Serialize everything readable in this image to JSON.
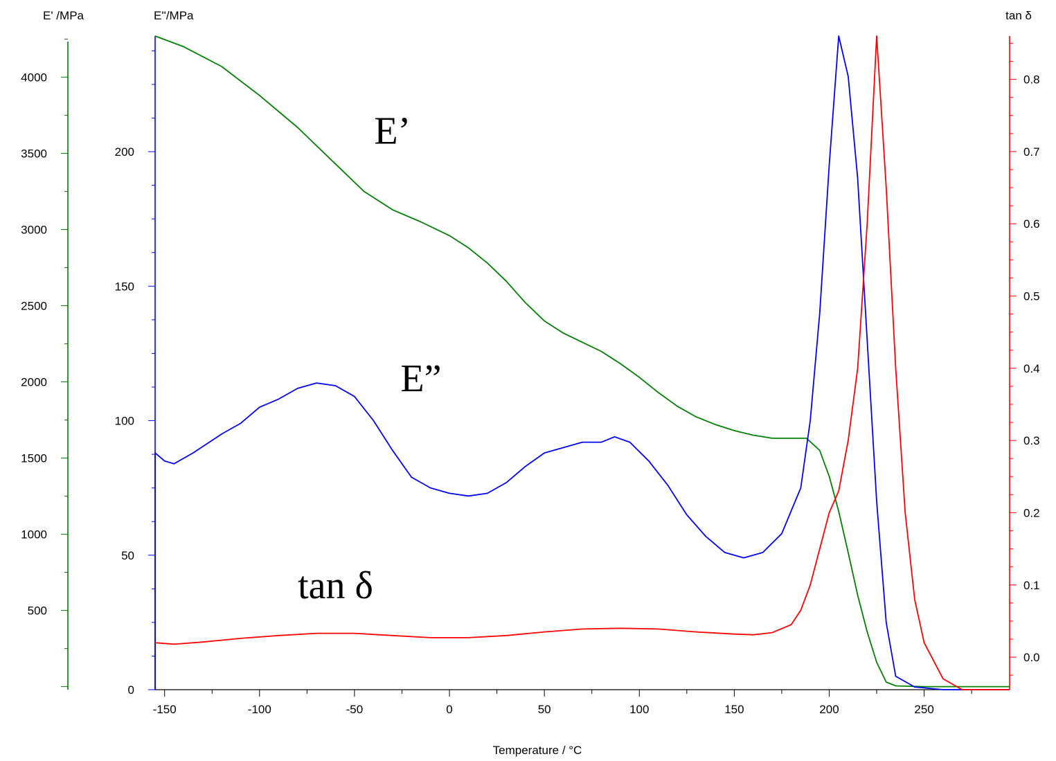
{
  "chart_data": {
    "type": "line",
    "x_axis": {
      "title": "Temperature / °C",
      "range": [
        -155,
        295
      ],
      "ticks": [
        -150,
        -100,
        -50,
        0,
        50,
        100,
        150,
        200,
        250
      ]
    },
    "y_axes": [
      {
        "id": "e1",
        "title": "E' /MPa",
        "color": "#008000",
        "range": [
          -20,
          4270
        ],
        "ticks": [
          0,
          500,
          1000,
          1500,
          2000,
          2500,
          3000,
          3500,
          4000
        ],
        "tick_labels": [
          "",
          "500",
          "1000",
          "1500",
          "2000",
          "2500",
          "3000",
          "3500",
          "4000"
        ]
      },
      {
        "id": "e2",
        "title": "E''/MPa",
        "color": "#0000ff",
        "range": [
          0,
          243
        ],
        "ticks": [
          0,
          50,
          100,
          150,
          200
        ],
        "tick_labels": [
          "0",
          "50",
          "100",
          "150",
          "200"
        ]
      },
      {
        "id": "tan",
        "title": "tan δ",
        "color": "#ff0000",
        "range": [
          -0.045,
          0.86
        ],
        "ticks": [
          0.0,
          0.1,
          0.2,
          0.3,
          0.4,
          0.5,
          0.6,
          0.7,
          0.8
        ],
        "tick_labels": [
          "0.0",
          "0.1",
          "0.2",
          "0.3",
          "0.4",
          "0.5",
          "0.6",
          "0.7",
          "0.8"
        ]
      }
    ],
    "series": [
      {
        "name": "E'",
        "axis": "e1",
        "color": "#008000",
        "points": [
          [
            -155,
            4270
          ],
          [
            -140,
            4200
          ],
          [
            -120,
            4070
          ],
          [
            -100,
            3880
          ],
          [
            -80,
            3670
          ],
          [
            -60,
            3430
          ],
          [
            -45,
            3250
          ],
          [
            -30,
            3130
          ],
          [
            -15,
            3050
          ],
          [
            0,
            2960
          ],
          [
            10,
            2880
          ],
          [
            20,
            2780
          ],
          [
            30,
            2660
          ],
          [
            40,
            2520
          ],
          [
            50,
            2400
          ],
          [
            60,
            2320
          ],
          [
            70,
            2260
          ],
          [
            80,
            2200
          ],
          [
            90,
            2120
          ],
          [
            100,
            2030
          ],
          [
            110,
            1930
          ],
          [
            120,
            1840
          ],
          [
            130,
            1770
          ],
          [
            140,
            1720
          ],
          [
            150,
            1680
          ],
          [
            160,
            1650
          ],
          [
            170,
            1630
          ],
          [
            180,
            1630
          ],
          [
            188,
            1630
          ],
          [
            195,
            1550
          ],
          [
            200,
            1380
          ],
          [
            205,
            1150
          ],
          [
            210,
            880
          ],
          [
            215,
            600
          ],
          [
            220,
            360
          ],
          [
            225,
            160
          ],
          [
            230,
            30
          ],
          [
            235,
            5
          ],
          [
            250,
            0
          ],
          [
            295,
            0
          ]
        ]
      },
      {
        "name": "E''",
        "axis": "e2",
        "color": "#0000ff",
        "points": [
          [
            -155,
            0
          ],
          [
            -155,
            88
          ],
          [
            -150,
            85
          ],
          [
            -145,
            84
          ],
          [
            -135,
            88
          ],
          [
            -120,
            95
          ],
          [
            -110,
            99
          ],
          [
            -100,
            105
          ],
          [
            -90,
            108
          ],
          [
            -80,
            112
          ],
          [
            -70,
            114
          ],
          [
            -60,
            113
          ],
          [
            -50,
            109
          ],
          [
            -40,
            100
          ],
          [
            -30,
            89
          ],
          [
            -20,
            79
          ],
          [
            -10,
            75
          ],
          [
            0,
            73
          ],
          [
            10,
            72
          ],
          [
            20,
            73
          ],
          [
            30,
            77
          ],
          [
            40,
            83
          ],
          [
            50,
            88
          ],
          [
            60,
            90
          ],
          [
            70,
            92
          ],
          [
            80,
            92
          ],
          [
            87,
            94
          ],
          [
            95,
            92
          ],
          [
            105,
            85
          ],
          [
            115,
            76
          ],
          [
            125,
            65
          ],
          [
            135,
            57
          ],
          [
            145,
            51
          ],
          [
            155,
            49
          ],
          [
            165,
            51
          ],
          [
            175,
            58
          ],
          [
            185,
            75
          ],
          [
            190,
            100
          ],
          [
            195,
            140
          ],
          [
            200,
            195
          ],
          [
            205,
            243
          ],
          [
            210,
            228
          ],
          [
            215,
            190
          ],
          [
            220,
            130
          ],
          [
            225,
            70
          ],
          [
            230,
            25
          ],
          [
            235,
            5
          ],
          [
            245,
            1
          ],
          [
            260,
            0
          ],
          [
            295,
            0
          ]
        ]
      },
      {
        "name": "tan δ",
        "axis": "tan",
        "color": "#ff0000",
        "points": [
          [
            -155,
            0.02
          ],
          [
            -145,
            0.018
          ],
          [
            -130,
            0.021
          ],
          [
            -110,
            0.026
          ],
          [
            -90,
            0.03
          ],
          [
            -70,
            0.033
          ],
          [
            -50,
            0.033
          ],
          [
            -30,
            0.03
          ],
          [
            -10,
            0.027
          ],
          [
            10,
            0.027
          ],
          [
            30,
            0.03
          ],
          [
            50,
            0.035
          ],
          [
            70,
            0.039
          ],
          [
            90,
            0.04
          ],
          [
            110,
            0.039
          ],
          [
            130,
            0.035
          ],
          [
            150,
            0.032
          ],
          [
            160,
            0.031
          ],
          [
            170,
            0.034
          ],
          [
            180,
            0.045
          ],
          [
            185,
            0.065
          ],
          [
            190,
            0.1
          ],
          [
            195,
            0.15
          ],
          [
            200,
            0.2
          ],
          [
            205,
            0.23
          ],
          [
            210,
            0.3
          ],
          [
            215,
            0.4
          ],
          [
            220,
            0.6
          ],
          [
            225,
            0.86
          ],
          [
            230,
            0.65
          ],
          [
            235,
            0.4
          ],
          [
            240,
            0.2
          ],
          [
            245,
            0.08
          ],
          [
            250,
            0.02
          ],
          [
            260,
            -0.03
          ],
          [
            270,
            -0.045
          ],
          [
            295,
            -0.045
          ]
        ]
      }
    ],
    "annotations": [
      {
        "text": "E’",
        "x": -30,
        "axis": "e2",
        "y": 203
      },
      {
        "text": "E”",
        "x": -15,
        "axis": "e2",
        "y": 111
      },
      {
        "text": "tan δ",
        "x": -60,
        "axis": "e2",
        "y": 34
      }
    ],
    "grid": false,
    "legend": "none"
  }
}
